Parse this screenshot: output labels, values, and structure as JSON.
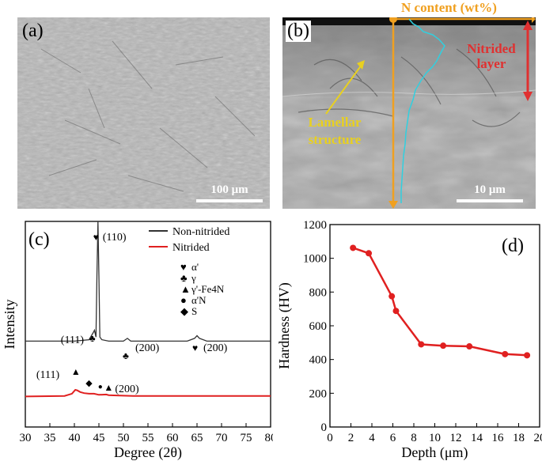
{
  "panels": {
    "a": {
      "label": "(a)",
      "scale_bar": "100 μm"
    },
    "b": {
      "label": "(b)",
      "scale_bar": "10 μm",
      "n_content": "N content (wt%)",
      "nitrided_layer": [
        "Nitrided",
        "layer"
      ],
      "lamellar": [
        "Lamellar",
        "structure"
      ]
    },
    "c": {
      "label": "(c)"
    },
    "d": {
      "label": "(d)"
    }
  },
  "colors": {
    "axis": "#000000",
    "nitrided": "#e02020",
    "non_nitrided": "#333333",
    "gold": "#f0a020",
    "cyan": "#30d0e0",
    "red_label": "#e03030",
    "yellow_label": "#e8d020"
  },
  "chart_data": [
    {
      "type": "line",
      "panel": "c",
      "xlabel": "Degree (2θ)",
      "ylabel": "Intensity",
      "xlim": [
        30,
        80
      ],
      "xticks": [
        30,
        35,
        40,
        45,
        50,
        55,
        60,
        65,
        70,
        75,
        80
      ],
      "legend": {
        "placement": "top-right",
        "entries": [
          "Non-nitrided",
          "Nitrided"
        ]
      },
      "phase_legend": [
        "α'",
        "γ",
        "γ'-Fe4N",
        "α'N",
        "S"
      ],
      "series": [
        {
          "name": "Non-nitrided",
          "x": [
            30,
            40,
            43,
            43.8,
            44.1,
            44.4,
            44.6,
            44.8,
            45.0,
            45.2,
            45.6,
            47,
            50,
            50.8,
            51.5,
            55,
            63,
            64.5,
            65,
            65.5,
            67,
            80
          ],
          "y": [
            0.12,
            0.12,
            0.13,
            0.18,
            0.2,
            0.15,
            0.6,
            1.0,
            0.6,
            0.15,
            0.13,
            0.12,
            0.12,
            0.14,
            0.12,
            0.12,
            0.12,
            0.14,
            0.16,
            0.14,
            0.12,
            0.12
          ]
        },
        {
          "name": "Nitrided",
          "x": [
            30,
            38,
            39.5,
            40.2,
            40.6,
            41.2,
            42,
            43,
            44,
            45,
            46.5,
            47,
            48,
            52,
            80
          ],
          "y": [
            -0.02,
            -0.01,
            0.03,
            0.1,
            0.09,
            0.06,
            0.04,
            0.03,
            0.03,
            0.01,
            0.015,
            0.005,
            0.0,
            -0.01,
            -0.01
          ]
        }
      ],
      "annotations": [
        {
          "text": "(110)",
          "x": 44.8,
          "symbol": "♥"
        },
        {
          "text": "(111)",
          "x": 44.0,
          "symbol": "♣"
        },
        {
          "text": "(200)",
          "x": 50.8,
          "symbol": "♣"
        },
        {
          "text": "(200)",
          "x": 65,
          "symbol": "♥"
        },
        {
          "text": "(111)",
          "x": 40.3,
          "symbol": "▲"
        },
        {
          "text": "(200)",
          "x": 47,
          "symbol": "▲"
        }
      ]
    },
    {
      "type": "line",
      "panel": "d",
      "xlabel": "Depth (μm)",
      "ylabel": "Hardness (HV)",
      "xlim": [
        0,
        20
      ],
      "ylim": [
        0,
        1200
      ],
      "xticks": [
        0,
        2,
        4,
        6,
        8,
        10,
        12,
        14,
        16,
        18,
        20
      ],
      "yticks": [
        0,
        200,
        400,
        600,
        800,
        1000,
        1200
      ],
      "series": [
        {
          "x": [
            2.2,
            3.7,
            5.9,
            6.3,
            8.7,
            10.8,
            13.3,
            16.7,
            18.8
          ],
          "y": [
            1062,
            1030,
            775,
            688,
            490,
            482,
            478,
            432,
            425
          ]
        }
      ]
    }
  ]
}
